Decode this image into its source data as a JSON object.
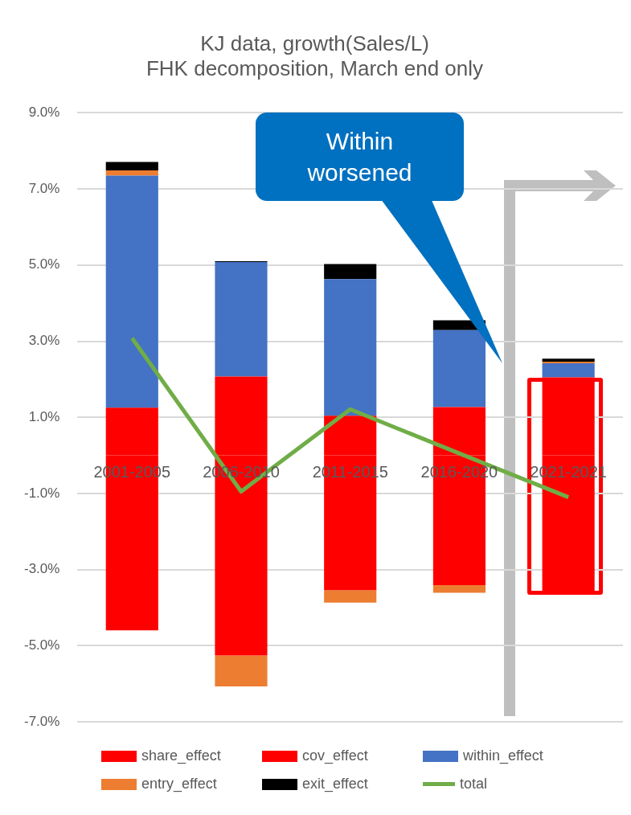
{
  "chart_data": {
    "type": "bar",
    "title": "KJ data, growth(Sales/L)\nFHK decomposition, March end only",
    "categories": [
      "2001-2005",
      "2006-2010",
      "2011-2015",
      "2016-2020",
      "2021-2021"
    ],
    "stacked": true,
    "series": [
      {
        "name": "share_effect",
        "color": "#ff0000",
        "values": [
          1.25,
          2.07,
          1.04,
          1.27,
          2.05
        ]
      },
      {
        "name": "cov_effect",
        "color": "#ff0000",
        "values": [
          -4.6,
          -5.26,
          -3.54,
          -3.41,
          -3.59
        ]
      },
      {
        "name": "within_effect",
        "color": "#4472c4",
        "values": [
          6.1,
          3.01,
          3.59,
          2.02,
          0.37
        ]
      },
      {
        "name": "entry_effect",
        "color": "#ed7d31",
        "values": [
          0.14,
          -0.81,
          -0.33,
          -0.2,
          0.04
        ]
      },
      {
        "name": "exit_effect",
        "color": "#000000",
        "values": [
          0.22,
          0.02,
          0.4,
          0.26,
          0.08
        ]
      },
      {
        "name": "total",
        "type": "line",
        "color": "#70ad47",
        "values": [
          3.08,
          -0.95,
          1.21,
          0.05,
          -1.1
        ]
      }
    ],
    "ylim": [
      -7,
      9
    ],
    "yticks": [
      {
        "value": -7,
        "label": "-7.0%"
      },
      {
        "value": -5,
        "label": "-5.0%"
      },
      {
        "value": -3,
        "label": "-3.0%"
      },
      {
        "value": -1,
        "label": "-1.0%"
      },
      {
        "value": 1,
        "label": "1.0%"
      },
      {
        "value": 3,
        "label": "3.0%"
      },
      {
        "value": 5,
        "label": "5.0%"
      },
      {
        "value": 7,
        "label": "7.0%"
      },
      {
        "value": 9,
        "label": "9.0%"
      }
    ],
    "grid": "y",
    "legend": "bottom",
    "marker": "none",
    "annotations": [
      "Within worsened"
    ]
  }
}
